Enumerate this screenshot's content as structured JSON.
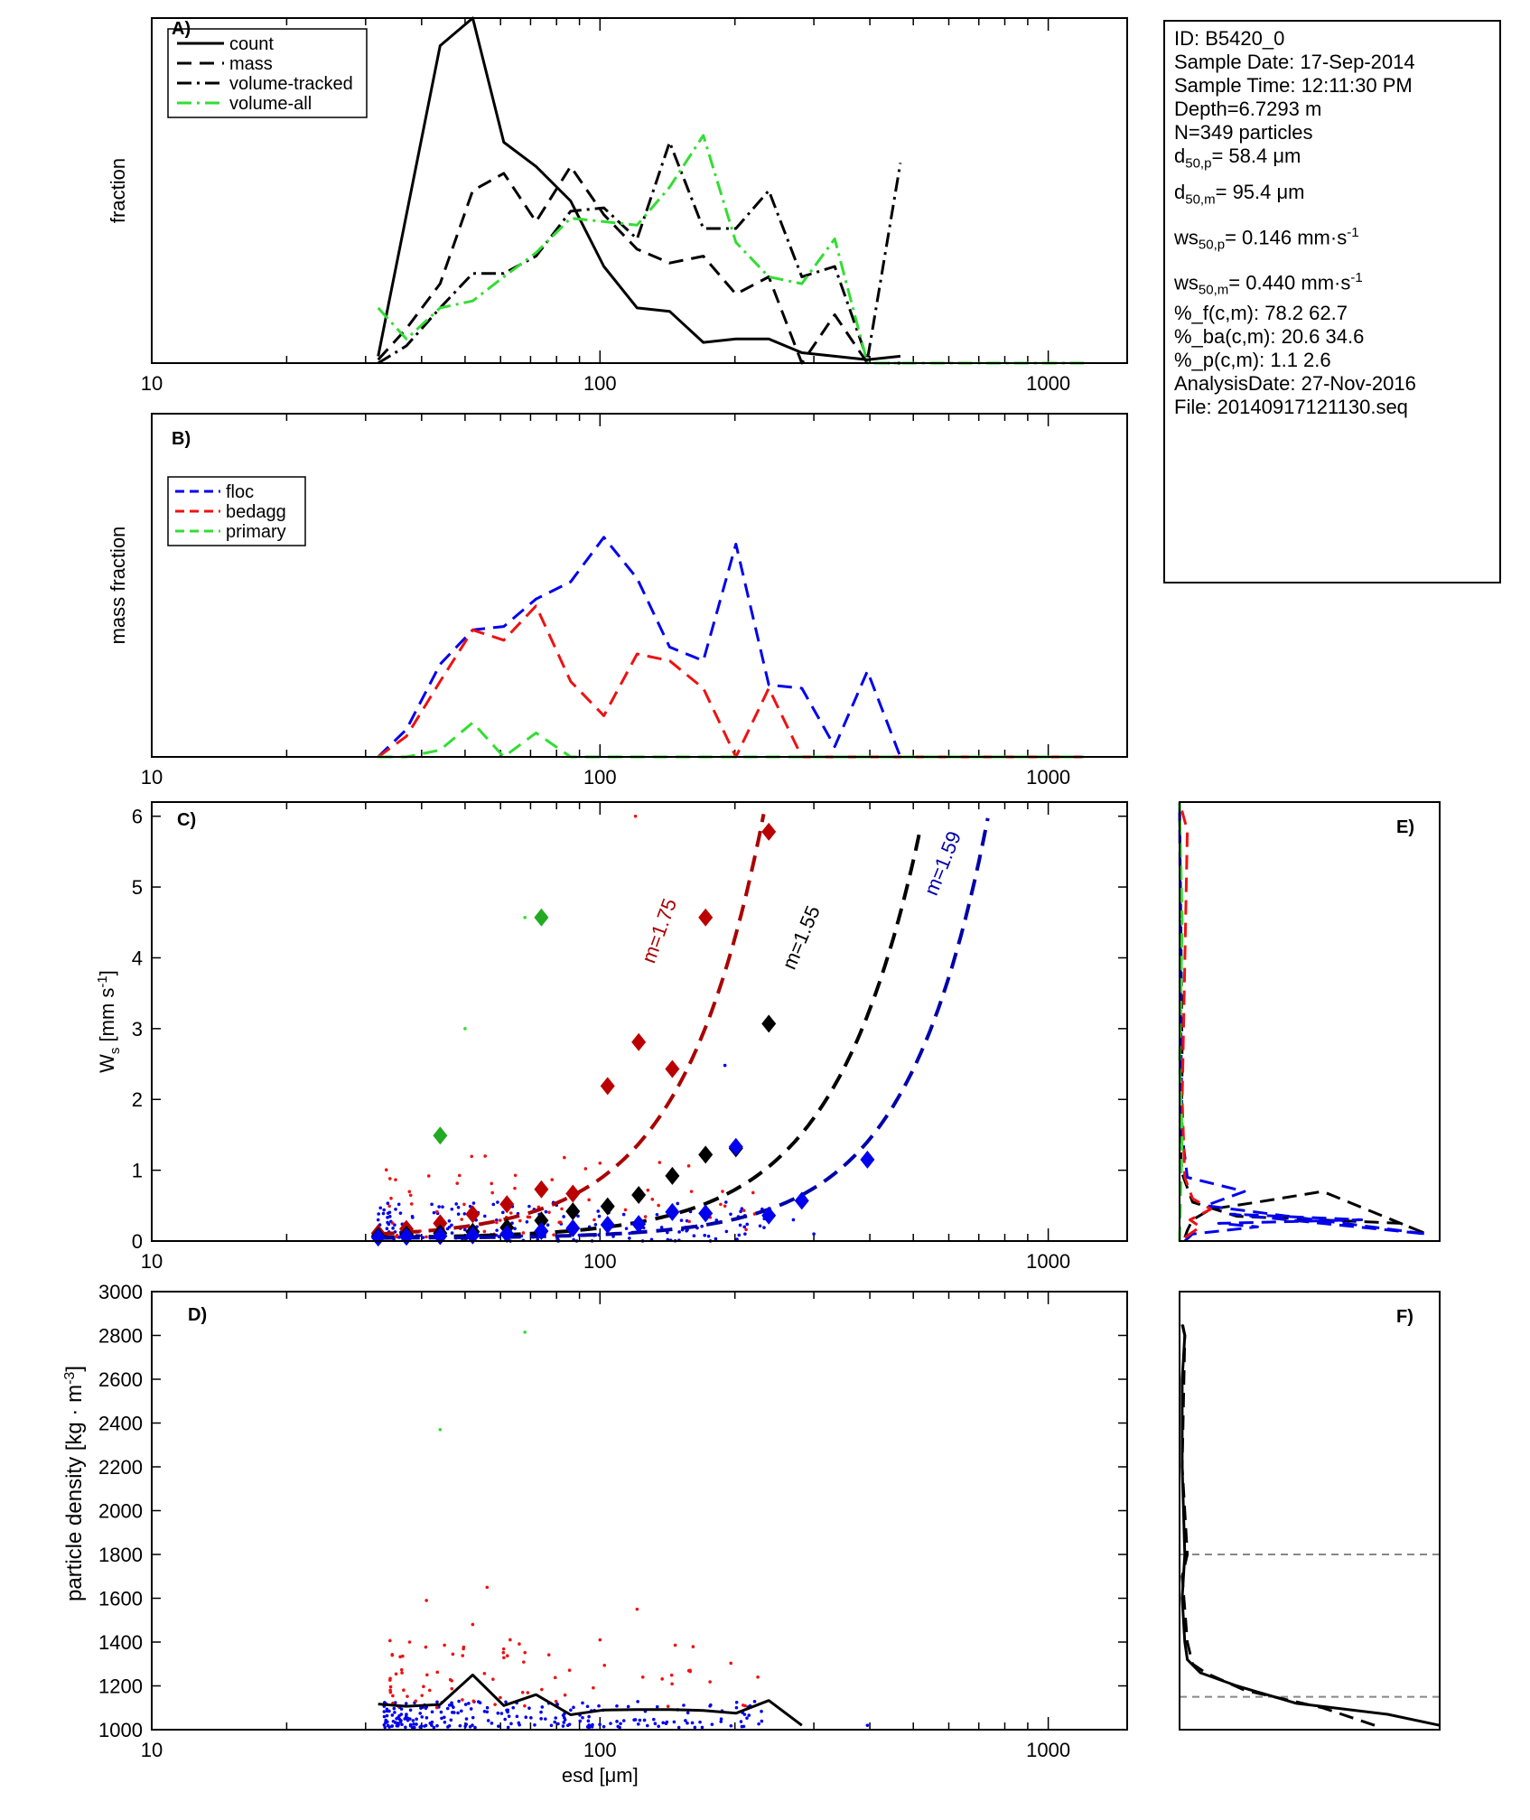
{
  "info": {
    "id": "ID: B5420_0",
    "sample_date": "Sample Date: 17-Sep-2014",
    "sample_time": "Sample Time: 12:11:30 PM",
    "depth": "Depth=6.7293 m",
    "n": "N=349 particles",
    "d50p": {
      "label": "d",
      "sub": "50,p",
      "value": "=  58.4 μm"
    },
    "d50m": {
      "label": "d",
      "sub": "50,m",
      "value": "=  95.4 μm"
    },
    "ws50p": {
      "label": "ws",
      "sub": "50,p",
      "value": "= 0.146 mm·s",
      "sup": "-1"
    },
    "ws50m": {
      "label": "ws",
      "sub": "50,m",
      "value": "= 0.440 mm·s",
      "sup": "-1"
    },
    "pf": "%_f(c,m): 78.2 62.7",
    "pba": "%_ba(c,m): 20.6 34.6",
    "pp": "%_p(c,m): 1.1 2.6",
    "analysis_date": "AnalysisDate: 27-Nov-2016",
    "file": "File: 20140917121130.seq"
  },
  "colors": {
    "black": "#000000",
    "green": "#33dd33",
    "blue": "#0000ee",
    "red": "#ee1111",
    "darkred": "#aa0000",
    "darkblue": "#0000aa",
    "diamond_red": "#bb0000",
    "diamond_green": "#22aa22",
    "grid_gray": "#888888"
  },
  "chart_data": [
    {
      "id": "A",
      "panel_label": "A)",
      "type": "line",
      "xscale": "log",
      "xlim": [
        10,
        1500
      ],
      "ylabel": "fraction",
      "xticks": [
        "10",
        "100",
        "1000"
      ],
      "ylim": [
        0,
        1
      ],
      "legend": {
        "placement": "top-left",
        "entries": [
          "count",
          "mass",
          "volume-tracked",
          "volume-all"
        ]
      },
      "series": [
        {
          "name": "count",
          "style": "solid",
          "color": "#000000",
          "x": [
            32,
            37,
            44,
            52,
            61,
            72,
            86,
            102,
            121,
            143,
            170,
            201,
            238,
            282,
            334,
            395,
            468
          ],
          "y": [
            0.02,
            0.43,
            0.92,
            1.0,
            0.64,
            0.57,
            0.47,
            0.28,
            0.16,
            0.15,
            0.06,
            0.07,
            0.07,
            0.03,
            0.02,
            0.01,
            0.02
          ]
        },
        {
          "name": "mass",
          "style": "dashed",
          "color": "#000000",
          "x": [
            32,
            37,
            44,
            52,
            61,
            72,
            86,
            102,
            121,
            143,
            170,
            201,
            238,
            282,
            334,
            395,
            468
          ],
          "y": [
            0.01,
            0.1,
            0.23,
            0.5,
            0.55,
            0.41,
            0.57,
            0.43,
            0.33,
            0.29,
            0.31,
            0.2,
            0.25,
            0.0,
            0.14,
            0.0,
            0.0
          ]
        },
        {
          "name": "volume-tracked",
          "style": "dashdot",
          "color": "#000000",
          "x": [
            32,
            37,
            44,
            52,
            61,
            72,
            86,
            102,
            121,
            143,
            170,
            201,
            238,
            282,
            334,
            395,
            468
          ],
          "y": [
            0.0,
            0.05,
            0.16,
            0.26,
            0.26,
            0.31,
            0.44,
            0.45,
            0.36,
            0.64,
            0.39,
            0.39,
            0.5,
            0.25,
            0.28,
            0.01,
            0.58
          ]
        },
        {
          "name": "volume-all",
          "style": "dashdot",
          "color": "#33dd33",
          "x": [
            32,
            37,
            44,
            52,
            61,
            72,
            86,
            102,
            121,
            143,
            170,
            201,
            238,
            282,
            334,
            395,
            468,
            560,
            1200
          ],
          "y": [
            0.16,
            0.07,
            0.16,
            0.18,
            0.25,
            0.32,
            0.42,
            0.41,
            0.4,
            0.51,
            0.66,
            0.35,
            0.25,
            0.23,
            0.36,
            0.0,
            0.0,
            0.0,
            0.0
          ]
        }
      ]
    },
    {
      "id": "B",
      "panel_label": "B)",
      "type": "line",
      "xscale": "log",
      "xlim": [
        10,
        1500
      ],
      "ylabel": "mass fraction",
      "xticks": [
        "10",
        "100",
        "1000"
      ],
      "ylim": [
        0,
        1
      ],
      "legend": {
        "placement": "top-left",
        "entries": [
          "floc",
          "bedagg",
          "primary"
        ]
      },
      "series": [
        {
          "name": "floc",
          "style": "dashed",
          "color": "#0000ee",
          "x": [
            32,
            37,
            44,
            52,
            61,
            72,
            86,
            102,
            121,
            143,
            170,
            201,
            238,
            282,
            334,
            395,
            468,
            560,
            1200
          ],
          "y": [
            0.0,
            0.08,
            0.27,
            0.37,
            0.38,
            0.46,
            0.51,
            0.64,
            0.52,
            0.32,
            0.28,
            0.62,
            0.21,
            0.2,
            0.03,
            0.25,
            0.0,
            0.0,
            0.0
          ]
        },
        {
          "name": "bedagg",
          "style": "dashed",
          "color": "#ee1111",
          "x": [
            32,
            37,
            44,
            52,
            61,
            72,
            86,
            102,
            121,
            143,
            170,
            201,
            238,
            282,
            334,
            395,
            468,
            560,
            1200
          ],
          "y": [
            0.0,
            0.06,
            0.22,
            0.37,
            0.34,
            0.44,
            0.22,
            0.12,
            0.3,
            0.28,
            0.2,
            0.0,
            0.2,
            0.0,
            0.0,
            0.0,
            0.0,
            0.0,
            0.0
          ]
        },
        {
          "name": "primary",
          "style": "dashed",
          "color": "#33dd33",
          "x": [
            32,
            37,
            44,
            52,
            61,
            72,
            86,
            102,
            121,
            143,
            170,
            201,
            238,
            282,
            334,
            395,
            468,
            560,
            1200
          ],
          "y": [
            0.0,
            0.0,
            0.02,
            0.1,
            0.0,
            0.07,
            0.0,
            0.0,
            0.0,
            0.0,
            0.0,
            0.0,
            0.0,
            0.0,
            0.0,
            0.0,
            0.0,
            0.0,
            0.0
          ]
        }
      ]
    },
    {
      "id": "C",
      "panel_label": "C)",
      "type": "scatter",
      "xscale": "log",
      "xlim": [
        10,
        1500
      ],
      "ylim": [
        0,
        6.2
      ],
      "yticks": [
        0,
        1,
        2,
        3,
        4,
        5,
        6
      ],
      "ylabel": {
        "main": "W",
        "sub": "s",
        "unit": " [mm s",
        "sup": "-1",
        "close": "]"
      },
      "xticks": [
        "10",
        "100",
        "1000"
      ],
      "fit_curves": [
        {
          "label": "m=1.75",
          "color": "#aa0000",
          "a": 1.75e-05,
          "b": 2.34,
          "xmax": 270
        },
        {
          "label": "m=1.55",
          "color": "#000000",
          "a": 4.8e-06,
          "b": 2.24,
          "xmax": 530
        },
        {
          "label": "m=1.59",
          "color": "#0000aa",
          "a": 9e-07,
          "b": 2.38,
          "xmax": 800
        }
      ],
      "curve_label_positions": [
        {
          "x": 140,
          "y": 4.35,
          "angle": -70
        },
        {
          "x": 290,
          "y": 4.25,
          "angle": -67
        },
        {
          "x": 600,
          "y": 5.3,
          "angle": -68
        }
      ],
      "diamonds": [
        {
          "color": "#bb0000",
          "x": [
            32,
            37,
            44,
            52,
            62,
            74,
            87,
            104,
            122,
            145,
            172,
            238
          ],
          "y": [
            0.11,
            0.17,
            0.25,
            0.38,
            0.52,
            0.73,
            0.67,
            2.19,
            2.81,
            2.43,
            4.57,
            5.78
          ]
        },
        {
          "color": "#000000",
          "x": [
            32,
            37,
            44,
            52,
            62,
            74,
            87,
            104,
            122,
            145,
            172,
            201,
            238
          ],
          "y": [
            0.07,
            0.09,
            0.11,
            0.13,
            0.19,
            0.29,
            0.42,
            0.49,
            0.65,
            0.92,
            1.22,
            1.31,
            3.07
          ]
        },
        {
          "color": "#0000ee",
          "x": [
            32,
            37,
            44,
            52,
            62,
            74,
            87,
            104,
            122,
            145,
            172,
            201,
            238,
            282,
            395
          ],
          "y": [
            0.05,
            0.06,
            0.07,
            0.08,
            0.1,
            0.14,
            0.18,
            0.23,
            0.24,
            0.41,
            0.39,
            1.33,
            0.36,
            0.57,
            1.15
          ]
        },
        {
          "color": "#22aa22",
          "x": [
            44,
            74
          ],
          "y": [
            1.49,
            4.57
          ]
        }
      ],
      "points": [
        {
          "color": "#0000ee",
          "seed": 11,
          "n": 180,
          "xmin": 32,
          "xmax": 240,
          "ymin": 0.0,
          "ymax": 0.55
        },
        {
          "color": "#ee1111",
          "seed": 23,
          "n": 70,
          "xmin": 33,
          "xmax": 230,
          "ymin": 0.05,
          "ymax": 1.2
        },
        {
          "color": "#0000ee",
          "fixed": true,
          "x": [
            190,
            210,
            230,
            270,
            300
          ],
          "y": [
            2.48,
            0.2,
            0.45,
            0.3,
            0.1
          ]
        },
        {
          "color": "#ee1111",
          "fixed": true,
          "x": [
            120,
            100,
            160
          ],
          "y": [
            6.0,
            1.1,
            0.7
          ]
        },
        {
          "color": "#33dd33",
          "fixed": true,
          "x": [
            50,
            68,
            44
          ],
          "y": [
            3.0,
            4.57,
            1.49
          ]
        }
      ]
    },
    {
      "id": "D",
      "panel_label": "D)",
      "type": "scatter",
      "xscale": "log",
      "xlim": [
        10,
        1500
      ],
      "ylim": [
        1000,
        3000
      ],
      "yticks": [
        1000,
        1200,
        1400,
        1600,
        1800,
        2000,
        2200,
        2400,
        2600,
        2800,
        3000
      ],
      "ylabel": {
        "main": "particle density [kg · m",
        "sup": "-3",
        "close": "]"
      },
      "xlabel": "esd [μm]",
      "xticks": [
        "10",
        "100",
        "1000"
      ],
      "line": {
        "color": "#000000",
        "x": [
          32,
          37,
          44,
          52,
          61,
          72,
          86,
          102,
          121,
          143,
          170,
          201,
          238,
          282
        ],
        "y": [
          1117,
          1107,
          1115,
          1250,
          1110,
          1160,
          1068,
          1090,
          1092,
          1092,
          1088,
          1075,
          1133,
          1020
        ]
      },
      "points": [
        {
          "color": "#0000ee",
          "seed": 37,
          "n": 230,
          "xmin": 33,
          "xmax": 230,
          "ymin": 1010,
          "ymax": 1130
        },
        {
          "color": "#ee1111",
          "seed": 53,
          "n": 75,
          "xmin": 34,
          "xmax": 230,
          "ymin": 1100,
          "ymax": 1420
        },
        {
          "color": "#ee1111",
          "fixed": true,
          "x": [
            41,
            56,
            121,
            100,
            52,
            225
          ],
          "y": [
            1590,
            1650,
            1550,
            1410,
            1480,
            1240
          ]
        },
        {
          "color": "#33dd33",
          "fixed": true,
          "x": [
            68,
            44
          ],
          "y": [
            2815,
            2370
          ]
        },
        {
          "color": "#0000ee",
          "fixed": true,
          "x": [
            395
          ],
          "y": [
            1020
          ]
        }
      ]
    },
    {
      "id": "E",
      "panel_label": "E)",
      "type": "line",
      "ylim": [
        0,
        6.2
      ],
      "xlim": [
        0,
        1
      ],
      "series": [
        {
          "name": "",
          "color": "#000000",
          "x": [
            0.02,
            0.03,
            0.05,
            0.12,
            0.3,
            0.55,
            0.95,
            0.85,
            0.22,
            0.05,
            0.01,
            0.005,
            0.01,
            0.005,
            0.0
          ],
          "y": [
            0.05,
            0.15,
            0.3,
            0.45,
            0.55,
            0.7,
            0.1,
            0.25,
            0.35,
            0.55,
            0.95,
            1.2,
            2.5,
            4.5,
            6.2
          ]
        },
        {
          "name": "",
          "color": "#0000ee",
          "x": [
            0.02,
            0.05,
            0.3,
            0.15,
            0.7,
            0.2,
            0.95,
            0.1,
            0.25,
            0.03,
            0.01,
            0.005,
            0.0
          ],
          "y": [
            0.0,
            0.1,
            0.2,
            0.25,
            0.3,
            0.38,
            0.1,
            0.5,
            0.7,
            0.9,
            1.5,
            3.0,
            6.2
          ]
        },
        {
          "name": "",
          "color": "#ee1111",
          "x": [
            0.02,
            0.08,
            0.04,
            0.12,
            0.05,
            0.02,
            0.01,
            0.03,
            0.0
          ],
          "y": [
            0.05,
            0.2,
            0.3,
            0.45,
            0.6,
            0.9,
            2.0,
            5.8,
            6.2
          ]
        },
        {
          "name": "",
          "color": "#33dd33",
          "x": [
            0.0,
            0.01,
            0.0,
            0.01,
            0.0
          ],
          "y": [
            0.0,
            1.5,
            2.5,
            4.5,
            6.2
          ]
        }
      ]
    },
    {
      "id": "F",
      "panel_label": "F)",
      "type": "line",
      "ylim": [
        1000,
        3000
      ],
      "xlim": [
        0,
        1
      ],
      "hlines": [
        1150,
        1800
      ],
      "series": [
        {
          "name": "",
          "color": "#000000",
          "style": "solid",
          "x": [
            1.0,
            0.8,
            0.45,
            0.22,
            0.08,
            0.03,
            0.02,
            0.01,
            0.02,
            0.01,
            0.01,
            0.02,
            0.01
          ],
          "y": [
            1020,
            1070,
            1120,
            1200,
            1260,
            1320,
            1400,
            1600,
            1800,
            2200,
            2600,
            2800,
            2850
          ]
        },
        {
          "name": "",
          "color": "#000000",
          "style": "dashed",
          "x": [
            0.75,
            0.55,
            0.25,
            0.1,
            0.05,
            0.03,
            0.02,
            0.01,
            0.03,
            0.01,
            0.02,
            0.01
          ],
          "y": [
            1020,
            1100,
            1180,
            1260,
            1300,
            1400,
            1550,
            1700,
            1800,
            2200,
            2800,
            2860
          ]
        }
      ]
    }
  ]
}
